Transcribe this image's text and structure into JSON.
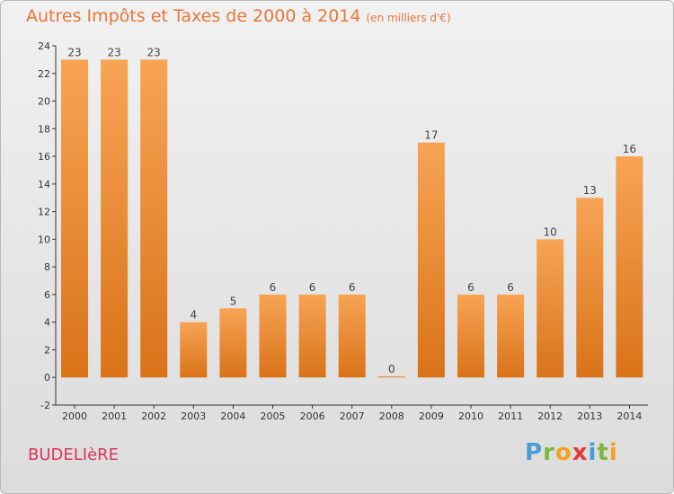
{
  "title": "Autres Impôts et Taxes de 2000 à 2014",
  "subtitle": "(en milliers d'€)",
  "commune": "BUDELIèRE",
  "logo": {
    "letters": [
      "P",
      "r",
      "o",
      "x",
      "i",
      "t",
      "i"
    ],
    "colors": [
      "#4a9bd6",
      "#7bb83c",
      "#f2a21c",
      "#e23a3a",
      "#4a9bd6",
      "#7bb83c",
      "#f2a21c"
    ]
  },
  "colors": {
    "bar_top": "#f7a455",
    "bar_bottom": "#d97318",
    "title": "#e8763a",
    "commune": "#d9345c"
  },
  "chart_data": {
    "type": "bar",
    "categories": [
      "2000",
      "2001",
      "2002",
      "2003",
      "2004",
      "2005",
      "2006",
      "2007",
      "2008",
      "2009",
      "2010",
      "2011",
      "2012",
      "2013",
      "2014"
    ],
    "values": [
      23,
      23,
      23,
      4,
      5,
      6,
      6,
      6,
      0,
      17,
      6,
      6,
      10,
      13,
      16
    ],
    "ylim": [
      -2,
      24
    ],
    "yticks": [
      -2,
      0,
      2,
      4,
      6,
      8,
      10,
      12,
      14,
      16,
      18,
      20,
      22,
      24
    ],
    "grid": false,
    "legend": "none"
  }
}
